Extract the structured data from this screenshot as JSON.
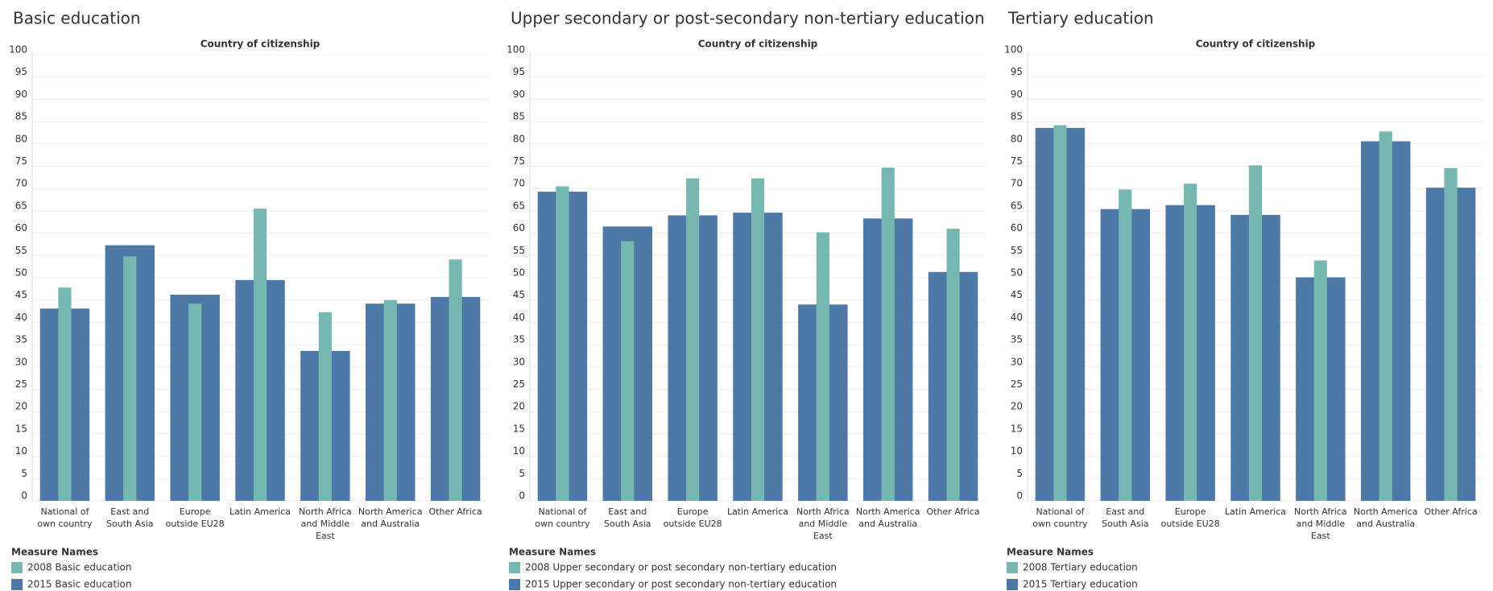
{
  "chart_data": [
    {
      "type": "bar",
      "title": "Basic education",
      "x_label": "Country of citizenship",
      "legend_title": "Measure Names",
      "categories": [
        "National of own country",
        "East and South Asia",
        "Europe outside EU28",
        "Latin America",
        "North Africa and Middle East",
        "North America and Australia",
        "Other Africa"
      ],
      "series": [
        {
          "name": "2008 Basic education",
          "color": "#76b7b2",
          "values": [
            47.8,
            54.8,
            44.2,
            65.5,
            42.3,
            45.0,
            54.1
          ]
        },
        {
          "name": "2015 Basic education",
          "color": "#4e79a7",
          "values": [
            43.1,
            57.3,
            46.2,
            49.5,
            33.6,
            44.2,
            45.7
          ]
        }
      ],
      "ylim": [
        0,
        100
      ],
      "yticks": [
        0,
        5,
        10,
        15,
        20,
        25,
        30,
        35,
        40,
        45,
        50,
        55,
        60,
        65,
        70,
        75,
        80,
        85,
        90,
        95,
        100
      ],
      "grid": true
    },
    {
      "type": "bar",
      "title": "Upper secondary or post-secondary non-tertiary education",
      "x_label": "Country of citizenship",
      "legend_title": "Measure Names",
      "categories": [
        "National of own country",
        "East and South Asia",
        "Europe outside EU28",
        "Latin America",
        "North Africa and Middle East",
        "North America and Australia",
        "Other Africa"
      ],
      "series": [
        {
          "name": "2008 Upper secondary or post secondary non-tertiary education",
          "color": "#76b7b2",
          "values": [
            70.5,
            58.2,
            72.3,
            72.3,
            60.2,
            74.7,
            61.0
          ]
        },
        {
          "name": "2015 Upper secondary or post secondary non-tertiary education",
          "color": "#4e79a7",
          "values": [
            69.3,
            61.5,
            64.0,
            64.6,
            44.0,
            63.3,
            51.3
          ]
        }
      ],
      "ylim": [
        0,
        100
      ],
      "yticks": [
        0,
        5,
        10,
        15,
        20,
        25,
        30,
        35,
        40,
        45,
        50,
        55,
        60,
        65,
        70,
        75,
        80,
        85,
        90,
        95,
        100
      ],
      "grid": true
    },
    {
      "type": "bar",
      "title": "Tertiary education",
      "x_label": "Country of citizenship",
      "legend_title": "Measure Names",
      "categories": [
        "National of own country",
        "East and South Asia",
        "Europe outside EU28",
        "Latin America",
        "North Africa and Middle East",
        "North America and Australia",
        "Other Africa"
      ],
      "series": [
        {
          "name": "2008 Tertiary education",
          "color": "#76b7b2",
          "values": [
            84.2,
            69.8,
            71.1,
            75.2,
            53.9,
            82.8,
            74.6
          ]
        },
        {
          "name": "2015 Tertiary education",
          "color": "#4e79a7",
          "values": [
            83.6,
            65.4,
            66.3,
            64.1,
            50.1,
            80.6,
            70.2
          ]
        }
      ],
      "ylim": [
        0,
        100
      ],
      "yticks": [
        0,
        5,
        10,
        15,
        20,
        25,
        30,
        35,
        40,
        45,
        50,
        55,
        60,
        65,
        70,
        75,
        80,
        85,
        90,
        95,
        100
      ],
      "grid": true
    }
  ]
}
